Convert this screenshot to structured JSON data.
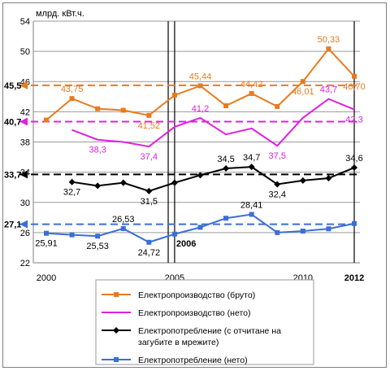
{
  "chart_data": {
    "type": "line",
    "ylabel": "млрд. кВт.ч.",
    "ylim": [
      22,
      54
    ],
    "yticks": [
      "54",
      "50",
      "46",
      "42",
      "38",
      "34",
      "30",
      "26",
      "22"
    ],
    "ytick_values": [
      54,
      50,
      46,
      42,
      38,
      34,
      30,
      26,
      22
    ],
    "xtick_labels": [
      {
        "x": 2000,
        "text": "2000",
        "bold": false
      },
      {
        "x": 2005,
        "text": "2005",
        "bold": false
      },
      {
        "x": 2010,
        "text": "2010",
        "bold": false
      },
      {
        "x": 2012,
        "text": "2012",
        "bold": true
      }
    ],
    "xlim": [
      2000,
      2012
    ],
    "vlines": [
      2004.75,
      2005,
      2012
    ],
    "grid": "horizontal",
    "series": [
      {
        "name": "Електропроизводство (бруто)",
        "color": "#e97a1f",
        "marker": "square",
        "x": [
          2000,
          2001,
          2002,
          2003,
          2004,
          2005,
          2006,
          2007,
          2008,
          2009,
          2010,
          2011,
          2012
        ],
        "values": [
          40.9,
          43.75,
          42.4,
          42.2,
          41.52,
          44.2,
          45.44,
          42.8,
          44.42,
          42.7,
          46.01,
          50.33,
          46.7
        ],
        "reference": {
          "value": 45.5,
          "label": "45,5"
        },
        "data_labels": [
          {
            "i": 1,
            "text": "43,75"
          },
          {
            "i": 4,
            "text": "41,52"
          },
          {
            "i": 6,
            "text": "45,44"
          },
          {
            "i": 8,
            "text": "44,42"
          },
          {
            "i": 10,
            "text": "46,01"
          },
          {
            "i": 11,
            "text": "50,33"
          },
          {
            "i": 12,
            "text": "46,70"
          }
        ]
      },
      {
        "name": "Електропроизводство (нето)",
        "color": "#e020e0",
        "marker": "none",
        "x": [
          2001,
          2002,
          2003,
          2004,
          2005,
          2006,
          2007,
          2008,
          2009,
          2010,
          2011,
          2012
        ],
        "values": [
          39.6,
          38.3,
          38.0,
          37.4,
          40.0,
          41.2,
          39.0,
          39.8,
          37.5,
          41.2,
          43.7,
          42.3
        ],
        "reference": {
          "value": 40.7,
          "label": "40,7"
        },
        "data_labels": [
          {
            "i": 1,
            "text": "38,3"
          },
          {
            "i": 3,
            "text": "37,4"
          },
          {
            "i": 5,
            "text": "41,2"
          },
          {
            "i": 8,
            "text": "37,5"
          },
          {
            "i": 10,
            "text": "43,7"
          },
          {
            "i": 11,
            "text": "42,3"
          }
        ]
      },
      {
        "name": "Електропотребление (с отчитане на загубите в мрежите)",
        "color": "#000000",
        "marker": "diamond",
        "x": [
          2001,
          2002,
          2003,
          2004,
          2005,
          2006,
          2007,
          2008,
          2009,
          2010,
          2011,
          2012
        ],
        "values": [
          32.7,
          32.2,
          32.6,
          31.5,
          32.6,
          33.6,
          34.5,
          34.7,
          32.4,
          32.9,
          33.2,
          34.6
        ],
        "reference": {
          "value": 33.7,
          "label": "33,7"
        },
        "data_labels": [
          {
            "i": 0,
            "text": "32,7"
          },
          {
            "i": 3,
            "text": "31,5"
          },
          {
            "i": 6,
            "text": "34,5"
          },
          {
            "i": 7,
            "text": "34,7"
          },
          {
            "i": 8,
            "text": "32,4"
          },
          {
            "i": 11,
            "text": "34,6"
          }
        ]
      },
      {
        "name": "Електропотребление (нето)",
        "color": "#3a6fd8",
        "marker": "square",
        "x": [
          2000,
          2001,
          2002,
          2003,
          2004,
          2005,
          2006,
          2007,
          2008,
          2009,
          2010,
          2011,
          2012
        ],
        "values": [
          25.91,
          25.7,
          25.53,
          26.53,
          24.72,
          25.8,
          26.7,
          27.9,
          28.41,
          26.0,
          26.2,
          26.5,
          27.2
        ],
        "reference": {
          "value": 27.1,
          "label": "27,1"
        },
        "data_labels": [
          {
            "i": 0,
            "text": "25,91"
          },
          {
            "i": 2,
            "text": "25,53"
          },
          {
            "i": 3,
            "text": "26,53"
          },
          {
            "i": 4,
            "text": "24,72"
          },
          {
            "i": 8,
            "text": "28,41"
          }
        ]
      }
    ],
    "annotations": [
      {
        "x": 2005,
        "y": 24.6,
        "text": "2006"
      }
    ]
  }
}
